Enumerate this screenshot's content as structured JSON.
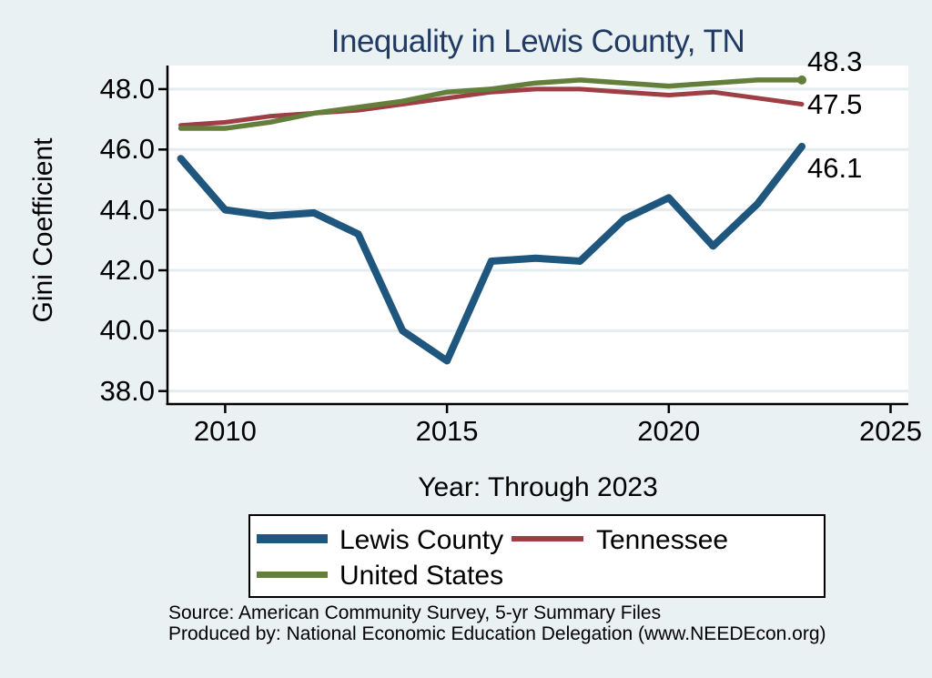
{
  "page": {
    "background": "#e9f1f3"
  },
  "chart_data": {
    "type": "line",
    "title": "Inequality in Lewis County, TN",
    "title_color": "#213a63",
    "xlabel": "Year: Through 2023",
    "ylabel": "Gini Coefficient",
    "x": [
      2009,
      2010,
      2011,
      2012,
      2013,
      2014,
      2015,
      2016,
      2017,
      2018,
      2019,
      2020,
      2021,
      2022,
      2023
    ],
    "series": [
      {
        "name": "Lewis County",
        "color": "#1e567e",
        "width": 8,
        "values": [
          45.7,
          44.0,
          43.8,
          43.9,
          43.2,
          40.0,
          39.0,
          42.3,
          42.4,
          42.3,
          43.7,
          44.4,
          42.8,
          44.2,
          46.1
        ],
        "end_label": "46.1",
        "end_label_dy": 24,
        "end_dot": false
      },
      {
        "name": "Tennessee",
        "color": "#9e3f45",
        "width": 5,
        "values": [
          46.8,
          46.9,
          47.1,
          47.2,
          47.3,
          47.5,
          47.7,
          47.9,
          48.0,
          48.0,
          47.9,
          47.8,
          47.9,
          47.7,
          47.5
        ],
        "end_label": "47.5",
        "end_label_dy": 1,
        "end_dot": false
      },
      {
        "name": "United States",
        "color": "#647f3b",
        "width": 5.5,
        "values": [
          46.7,
          46.7,
          46.9,
          47.2,
          47.4,
          47.6,
          47.9,
          48.0,
          48.2,
          48.3,
          48.2,
          48.1,
          48.2,
          48.3,
          48.3
        ],
        "end_label": "48.3",
        "end_label_dy": -20,
        "end_dot": true
      }
    ],
    "y_ticks": {
      "values": [
        48,
        46,
        44,
        42,
        40,
        38
      ],
      "labels": [
        "48.0",
        "46.0",
        "44.0",
        "42.0",
        "40.0",
        "38.0"
      ]
    },
    "x_ticks": {
      "values": [
        2010,
        2015,
        2020,
        2025
      ],
      "labels": [
        "2010",
        "2015",
        "2020",
        "2025"
      ]
    },
    "xlim": [
      2008.7,
      2025.4
    ],
    "ylim": [
      37.57,
      48.78
    ],
    "grid": true,
    "grid_color": "#e3ecef",
    "axis_color": "#000000",
    "plot_background": "#ffffff",
    "legend_position": "bottom"
  },
  "notes": {
    "source": "Source: American Community Survey, 5-yr Summary Files",
    "produced_by": "Produced by: National Economic Education Delegation (www.NEEDEcon.org)"
  }
}
